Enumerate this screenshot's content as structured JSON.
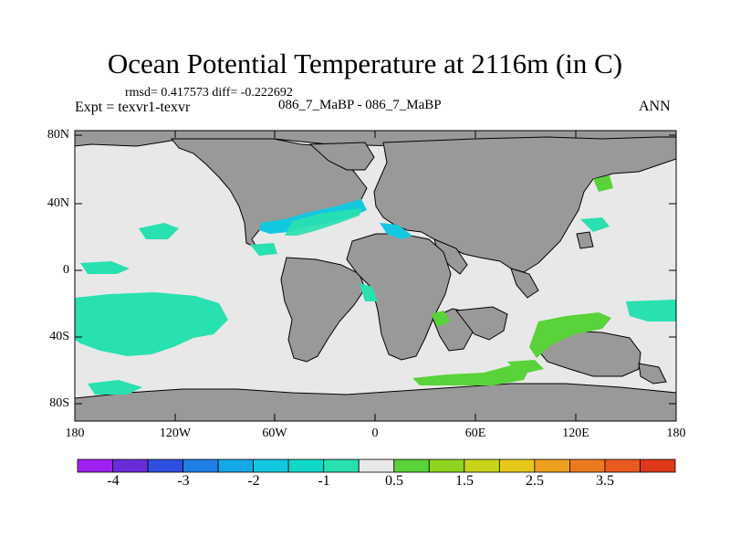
{
  "title": "Ocean Potential Temperature at 2116m (in C)",
  "stats": "rmsd= 0.417573 diff= -0.222692",
  "expt": "Expt = texvr1-texvr",
  "cases": "086_7_MaBP - 086_7_MaBP",
  "season": "ANN",
  "lat_ticks": [
    "80N",
    "40N",
    "0",
    "40S",
    "80S"
  ],
  "lon_ticks": [
    "180",
    "120W",
    "60W",
    "0",
    "60E",
    "120E",
    "180"
  ],
  "colorbar": {
    "labels": [
      "-4",
      "-3",
      "-2",
      "-1",
      "0.5",
      "1.5",
      "2.5",
      "3.5"
    ],
    "colors": [
      "#a020f0",
      "#6a2bd8",
      "#2f4fe0",
      "#1e7fe6",
      "#15a8e6",
      "#12c8e0",
      "#10d8c8",
      "#28e0b0",
      "#e8e8e8",
      "#5ad23a",
      "#8fd41e",
      "#c8d41a",
      "#e6c81a",
      "#eca01e",
      "#ec7a1e",
      "#e85a1e",
      "#e0381a"
    ]
  },
  "colors": {
    "land": "#999999",
    "ocean_zero": "#e8e8e8",
    "cool_anomaly": "#28e0b0",
    "cyan_anomaly": "#12c8e0",
    "warm_anomaly": "#5ad23a"
  }
}
